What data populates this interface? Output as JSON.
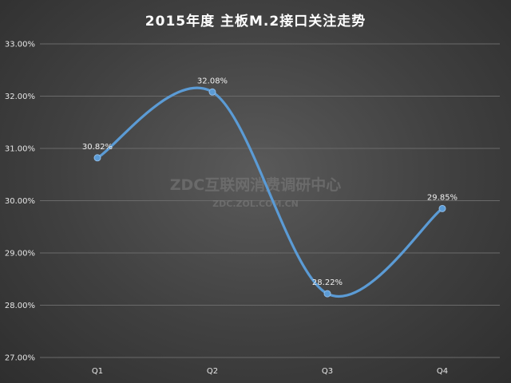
{
  "title": "2015年度 主板M.2接口关注走势",
  "watermark": {
    "line1": "ZDC互联网消费调研中心",
    "line2": "ZDC.ZOL.COM.CN"
  },
  "chart_data": {
    "type": "line",
    "title": "2015年度 主板M.2接口关注走势",
    "categories": [
      "Q1",
      "Q2",
      "Q3",
      "Q4"
    ],
    "values": [
      30.82,
      32.08,
      28.22,
      29.85
    ],
    "data_labels": [
      "30.82%",
      "32.08%",
      "28.22%",
      "29.85%"
    ],
    "ylim": [
      27,
      33
    ],
    "y_ticks": [
      27,
      28,
      29,
      30,
      31,
      32,
      33
    ],
    "y_tick_labels": [
      "27.00%",
      "28.00%",
      "29.00%",
      "30.00%",
      "31.00%",
      "32.00%",
      "33.00%"
    ],
    "smooth": true,
    "grid": true,
    "legend": "none",
    "line_color": "#5b9bd5",
    "marker_color": "#5b9bd5"
  }
}
